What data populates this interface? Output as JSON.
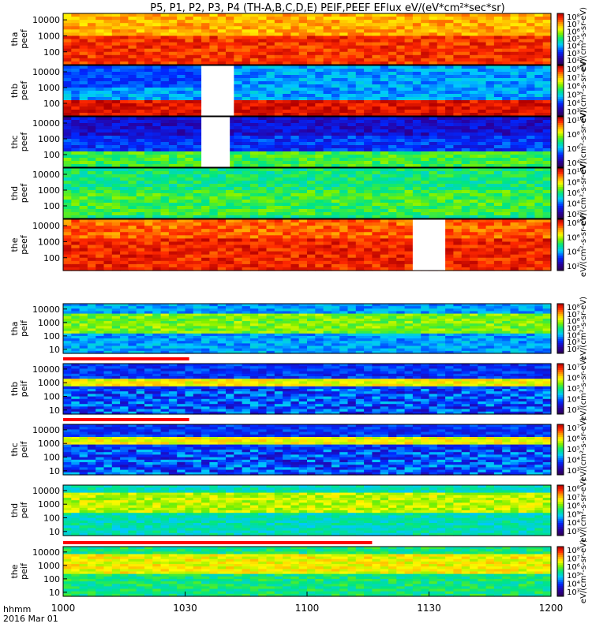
{
  "title": "P5, P1, P2, P3, P4 (TH-A,B,C,D,E) PEIF,PEEF EFlux eV/(eV*cm²*sec*sr)",
  "footer": {
    "time_label": "hhmm",
    "date_label": "2016 Mar 01"
  },
  "colors": {
    "highlight_bar": "#ff0000",
    "gap_fill": "#ffffff",
    "background": "#ffffff"
  },
  "chart_data": {
    "type": "heatmap",
    "x_axis": {
      "ticks": [
        "1000",
        "1030",
        "1100",
        "1130",
        "1200"
      ],
      "range_minutes": [
        0,
        120
      ],
      "tick_minutes": [
        0,
        30,
        60,
        90,
        120
      ]
    },
    "y_axis": {
      "scale": "log",
      "ticks_top": [
        "10000",
        "1000",
        "100"
      ],
      "ticks_bottom": [
        "10000",
        "1000",
        "100",
        "10"
      ]
    },
    "colormap": "rainbow",
    "panels": [
      {
        "name": "tha_peef",
        "ylabel": "tha peef",
        "cbar_ticks": [
          "10⁸",
          "10⁷",
          "10⁶",
          "10⁵",
          "10⁴",
          "10³",
          "10²"
        ],
        "cbar_unit": "eV/(cm²-s-sr-eV)",
        "gaps": [],
        "base_level": 0.78,
        "hot_band": [
          1.2,
          3.0
        ],
        "warm_level": 0.9
      },
      {
        "name": "thb_peef",
        "ylabel": "thb peef",
        "cbar_ticks": [
          "10⁸",
          "10⁷",
          "10⁶",
          "10⁵",
          "10⁴",
          "10³"
        ],
        "cbar_unit": "eV/(cm²-s-sr-eV)",
        "gaps": [
          [
            34,
            42
          ]
        ],
        "base_level": 0.35,
        "hot_band": [
          1.3,
          2.2
        ],
        "warm_level": 0.95
      },
      {
        "name": "thc_peef",
        "ylabel": "thc peef",
        "cbar_ticks": [
          "10¹⁰",
          "10⁸",
          "10⁶",
          "10⁴"
        ],
        "cbar_unit": "eV/(cm²-s-sr-eV)",
        "gaps": [
          [
            34,
            41
          ]
        ],
        "base_level": 0.25,
        "hot_band": [
          1.2,
          2.2
        ],
        "warm_level": 0.55
      },
      {
        "name": "thd_peef",
        "ylabel": "thd peef",
        "cbar_ticks": [
          "10¹⁰",
          "10⁸",
          "10⁶",
          "10⁴",
          "10²"
        ],
        "cbar_unit": "eV/(cm²-s-sr-eV)",
        "gaps": [],
        "base_level": 0.5,
        "hot_band": [
          1.5,
          3.0
        ],
        "warm_level": 0.55
      },
      {
        "name": "the_peef",
        "ylabel": "the peef",
        "cbar_ticks": [
          "10⁸",
          "10⁶",
          "10⁴",
          "10²"
        ],
        "cbar_unit": "eV/(cm²-s-sr-eV)",
        "gaps": [
          [
            86,
            94
          ]
        ],
        "base_level": 0.85,
        "hot_band": [
          1.3,
          3.2
        ],
        "warm_level": 0.92
      },
      {
        "name": "tha_peif",
        "ylabel": "tha peif",
        "cbar_ticks": [
          "10⁸",
          "10⁷",
          "10⁶",
          "10⁵",
          "10⁴",
          "10³",
          "10²"
        ],
        "cbar_unit": "eV/(cm²-s-sr-eV)",
        "gaps": [],
        "base_level": 0.35,
        "hot_band": [
          2.2,
          3.6
        ],
        "warm_level": 0.6
      },
      {
        "name": "thb_peif",
        "ylabel": "thb peif",
        "cbar_ticks": [
          "10⁷",
          "10⁶",
          "10⁵",
          "10⁴",
          "10³"
        ],
        "cbar_unit": "eV/(cm²-s-sr-eV)",
        "gaps": [],
        "base_level": 0.25,
        "hot_band": [
          2.7,
          3.2
        ],
        "warm_level": 0.7
      },
      {
        "name": "thc_peif",
        "ylabel": "thc peif",
        "cbar_ticks": [
          "10⁷",
          "10⁶",
          "10⁵",
          "10⁴",
          "10³"
        ],
        "cbar_unit": "eV/(cm²-s-sr-eV)",
        "gaps": [],
        "base_level": 0.25,
        "hot_band": [
          2.9,
          3.4
        ],
        "warm_level": 0.7
      },
      {
        "name": "thd_peif",
        "ylabel": "thd peif",
        "cbar_ticks": [
          "10⁸",
          "10⁷",
          "10⁶",
          "10⁵",
          "10⁴",
          "10³"
        ],
        "cbar_unit": "eV/(cm²-s-sr-eV)",
        "gaps": [],
        "base_level": 0.45,
        "hot_band": [
          2.4,
          3.8
        ],
        "warm_level": 0.65
      },
      {
        "name": "the_peif",
        "ylabel": "the peif",
        "cbar_ticks": [
          "10⁸",
          "10⁷",
          "10⁶",
          "10⁵",
          "10⁴",
          "10³"
        ],
        "cbar_unit": "eV/(cm²-s-sr-eV)",
        "gaps": [],
        "base_level": 0.5,
        "hot_band": [
          2.3,
          3.8
        ],
        "warm_level": 0.7
      }
    ],
    "flag_bars": [
      {
        "after_panel": "tha_peif",
        "x_range_minutes": [
          0,
          31
        ]
      },
      {
        "after_panel": "thb_peif",
        "x_range_minutes": [
          0,
          31
        ]
      },
      {
        "after_panel": "thd_peif",
        "x_range_minutes": [
          0,
          76
        ]
      }
    ]
  }
}
